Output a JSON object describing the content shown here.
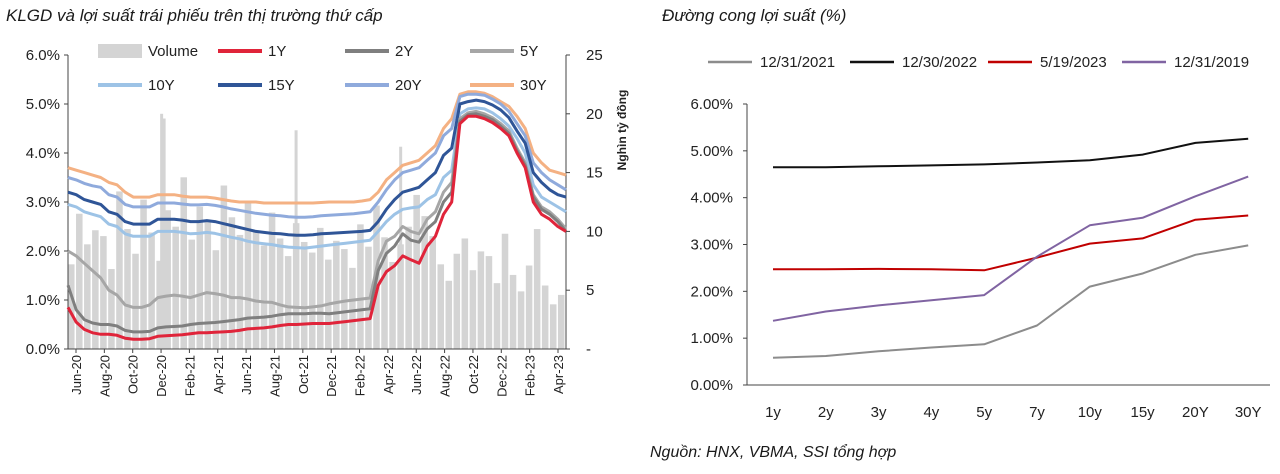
{
  "left_title": "KLGD và lợi suất trái phiếu trên thị trường thứ cấp",
  "right_title": "Đường cong lợi suất (%)",
  "source": "Nguồn: HNX, VBMA, SSI tổng hợp",
  "chart_data": [
    {
      "type": "line",
      "title": "KLGD và lợi suất trái phiếu trên thị trường thứ cấp",
      "ylabel": "",
      "y2label": "Nghìn tỷ đồng",
      "ylim": [
        0,
        6
      ],
      "y2lim": [
        0,
        25
      ],
      "y_ticks": [
        "0.0%",
        "1.0%",
        "2.0%",
        "3.0%",
        "4.0%",
        "5.0%",
        "6.0%"
      ],
      "y2_ticks": [
        "-",
        "5",
        "10",
        "15",
        "20",
        "25"
      ],
      "x_ticks": [
        "Jun-20",
        "Aug-20",
        "Oct-20",
        "Dec-20",
        "Feb-21",
        "Apr-21",
        "Jun-21",
        "Aug-21",
        "Oct-21",
        "Dec-21",
        "Feb-22",
        "Apr-22",
        "Jun-22",
        "Aug-22",
        "Oct-22",
        "Dec-22",
        "Feb-23",
        "Apr-23"
      ],
      "volume": {
        "name": "Volume",
        "color": "#d4d4d4",
        "values": [
          7.2,
          11.5,
          8.9,
          10.1,
          9.6,
          6.8,
          13.4,
          10.2,
          8.1,
          12.7,
          9.9,
          7.5,
          11.8,
          10.4,
          14.6,
          9.3,
          12.1,
          10.8,
          8.4,
          13.9,
          11.2,
          9.7,
          12.5,
          10.1,
          8.8,
          11.6,
          9.4,
          7.9,
          10.7,
          9.1,
          8.2,
          10.3,
          7.6,
          9.2,
          8.5,
          6.9,
          10.6,
          8.7,
          12.2,
          9.5,
          7.4,
          8.9,
          10.4,
          13.1,
          11.3,
          9.6,
          7.2,
          5.8,
          8.1,
          9.4,
          6.7,
          8.3,
          7.9,
          5.6,
          9.8,
          6.3,
          4.9,
          7.1,
          10.2,
          5.4,
          3.8,
          4.6
        ],
        "peaks": [
          {
            "x": "Jan-21",
            "value": 20.0
          },
          {
            "x": "Jan-21",
            "value": 19.6
          },
          {
            "x": "Oct-21",
            "value": 18.6
          },
          {
            "x": "Jul-22",
            "value": 17.2
          }
        ]
      },
      "series": [
        {
          "name": "1Y",
          "color": "#e0243a",
          "values": [
            0.85,
            0.55,
            0.4,
            0.33,
            0.3,
            0.3,
            0.28,
            0.22,
            0.2,
            0.2,
            0.21,
            0.26,
            0.27,
            0.28,
            0.29,
            0.31,
            0.33,
            0.33,
            0.34,
            0.35,
            0.36,
            0.38,
            0.41,
            0.42,
            0.43,
            0.45,
            0.48,
            0.5,
            0.5,
            0.51,
            0.52,
            0.52,
            0.52,
            0.54,
            0.56,
            0.58,
            0.6,
            0.62,
            1.3,
            1.58,
            1.7,
            1.9,
            1.82,
            1.75,
            2.1,
            2.3,
            2.75,
            3.0,
            4.6,
            4.75,
            4.75,
            4.7,
            4.62,
            4.5,
            4.35,
            4.0,
            3.7,
            3.0,
            2.75,
            2.65,
            2.5,
            2.4
          ]
        },
        {
          "name": "2Y",
          "color": "#7f7f7f",
          "values": [
            1.3,
            0.8,
            0.6,
            0.53,
            0.5,
            0.5,
            0.47,
            0.38,
            0.35,
            0.35,
            0.36,
            0.43,
            0.45,
            0.46,
            0.47,
            0.5,
            0.52,
            0.53,
            0.54,
            0.56,
            0.58,
            0.6,
            0.63,
            0.64,
            0.65,
            0.67,
            0.7,
            0.72,
            0.72,
            0.72,
            0.73,
            0.73,
            0.72,
            0.74,
            0.76,
            0.78,
            0.8,
            0.82,
            1.6,
            1.95,
            2.1,
            2.35,
            2.22,
            2.18,
            2.45,
            2.6,
            3.0,
            3.2,
            4.65,
            4.78,
            4.8,
            4.75,
            4.68,
            4.55,
            4.4,
            4.05,
            3.75,
            3.1,
            2.85,
            2.75,
            2.6,
            2.4
          ]
        },
        {
          "name": "5Y",
          "color": "#a6a6a6",
          "values": [
            2.0,
            1.9,
            1.75,
            1.6,
            1.45,
            1.2,
            1.1,
            0.9,
            0.85,
            0.85,
            0.9,
            1.05,
            1.08,
            1.1,
            1.08,
            1.05,
            1.1,
            1.15,
            1.13,
            1.1,
            1.05,
            1.05,
            1.02,
            0.98,
            0.96,
            0.95,
            0.9,
            0.86,
            0.85,
            0.84,
            0.86,
            0.88,
            0.92,
            0.95,
            0.98,
            1.0,
            1.02,
            1.04,
            1.8,
            2.2,
            2.3,
            2.5,
            2.4,
            2.35,
            2.65,
            2.8,
            3.2,
            3.4,
            4.7,
            4.82,
            4.85,
            4.8,
            4.72,
            4.6,
            4.45,
            4.1,
            3.8,
            3.15,
            2.9,
            2.8,
            2.65,
            2.45
          ]
        },
        {
          "name": "10Y",
          "color": "#9dc3e6",
          "values": [
            2.95,
            2.9,
            2.8,
            2.75,
            2.7,
            2.55,
            2.5,
            2.35,
            2.3,
            2.3,
            2.3,
            2.4,
            2.4,
            2.4,
            2.38,
            2.35,
            2.36,
            2.38,
            2.36,
            2.32,
            2.28,
            2.25,
            2.2,
            2.17,
            2.15,
            2.13,
            2.1,
            2.08,
            2.07,
            2.06,
            2.08,
            2.1,
            2.12,
            2.14,
            2.16,
            2.18,
            2.2,
            2.22,
            2.4,
            2.6,
            2.75,
            2.85,
            2.88,
            2.9,
            3.05,
            3.15,
            3.5,
            3.65,
            4.8,
            4.9,
            4.92,
            4.9,
            4.82,
            4.7,
            4.55,
            4.3,
            4.0,
            3.35,
            3.1,
            3.0,
            2.9,
            2.8
          ]
        },
        {
          "name": "15Y",
          "color": "#2f5597",
          "values": [
            3.2,
            3.15,
            3.05,
            3.0,
            2.95,
            2.8,
            2.75,
            2.6,
            2.55,
            2.55,
            2.55,
            2.65,
            2.65,
            2.65,
            2.63,
            2.6,
            2.6,
            2.62,
            2.6,
            2.56,
            2.52,
            2.48,
            2.44,
            2.4,
            2.38,
            2.36,
            2.35,
            2.33,
            2.32,
            2.32,
            2.33,
            2.35,
            2.36,
            2.37,
            2.38,
            2.39,
            2.4,
            2.42,
            2.6,
            2.85,
            3.05,
            3.2,
            3.25,
            3.3,
            3.45,
            3.6,
            3.95,
            4.1,
            5.0,
            5.05,
            5.08,
            5.05,
            4.98,
            4.88,
            4.72,
            4.45,
            4.2,
            3.6,
            3.4,
            3.25,
            3.15,
            3.1
          ]
        },
        {
          "name": "20Y",
          "color": "#8faadc",
          "values": [
            3.5,
            3.45,
            3.38,
            3.33,
            3.3,
            3.15,
            3.1,
            2.95,
            2.9,
            2.9,
            2.9,
            2.98,
            2.98,
            2.98,
            2.96,
            2.94,
            2.94,
            2.95,
            2.93,
            2.9,
            2.86,
            2.83,
            2.8,
            2.77,
            2.75,
            2.73,
            2.72,
            2.7,
            2.69,
            2.69,
            2.7,
            2.72,
            2.73,
            2.74,
            2.75,
            2.76,
            2.78,
            2.8,
            3.0,
            3.25,
            3.45,
            3.6,
            3.65,
            3.7,
            3.85,
            4.0,
            4.35,
            4.5,
            5.15,
            5.2,
            5.2,
            5.18,
            5.1,
            5.0,
            4.85,
            4.6,
            4.35,
            3.8,
            3.6,
            3.45,
            3.35,
            3.25
          ]
        },
        {
          "name": "30Y",
          "color": "#f4b183",
          "values": [
            3.7,
            3.65,
            3.6,
            3.55,
            3.5,
            3.4,
            3.35,
            3.2,
            3.1,
            3.1,
            3.1,
            3.15,
            3.15,
            3.15,
            3.12,
            3.1,
            3.1,
            3.1,
            3.08,
            3.05,
            3.02,
            3.0,
            3.0,
            3.0,
            2.98,
            2.98,
            2.98,
            2.98,
            2.98,
            2.98,
            2.98,
            2.99,
            3.0,
            3.0,
            3.0,
            3.0,
            3.02,
            3.05,
            3.2,
            3.45,
            3.6,
            3.75,
            3.8,
            3.85,
            4.0,
            4.15,
            4.5,
            4.7,
            5.2,
            5.25,
            5.25,
            5.22,
            5.15,
            5.05,
            4.95,
            4.75,
            4.5,
            4.0,
            3.8,
            3.65,
            3.6,
            3.55
          ]
        }
      ]
    },
    {
      "type": "line",
      "title": "Đường cong lợi suất (%)",
      "ylim": [
        0,
        6
      ],
      "y_ticks": [
        "0.00%",
        "1.00%",
        "2.00%",
        "3.00%",
        "4.00%",
        "5.00%",
        "6.00%"
      ],
      "categories": [
        "1y",
        "2y",
        "3y",
        "4y",
        "5y",
        "7y",
        "10y",
        "15y",
        "20Y",
        "30Y"
      ],
      "series": [
        {
          "name": "12/31/2021",
          "color": "#8c8c8c",
          "values": [
            0.58,
            0.62,
            0.72,
            0.8,
            0.87,
            1.27,
            2.1,
            2.38,
            2.78,
            2.98
          ]
        },
        {
          "name": "12/30/2022",
          "color": "#111111",
          "values": [
            4.65,
            4.65,
            4.67,
            4.69,
            4.71,
            4.75,
            4.8,
            4.92,
            5.17,
            5.26
          ]
        },
        {
          "name": "5/19/2023",
          "color": "#c00000",
          "values": [
            2.47,
            2.47,
            2.48,
            2.47,
            2.45,
            2.72,
            3.02,
            3.13,
            3.53,
            3.62
          ]
        },
        {
          "name": "12/31/2019",
          "color": "#8064a2",
          "values": [
            1.37,
            1.57,
            1.7,
            1.81,
            1.92,
            2.74,
            3.41,
            3.57,
            4.03,
            4.45
          ]
        }
      ]
    }
  ]
}
